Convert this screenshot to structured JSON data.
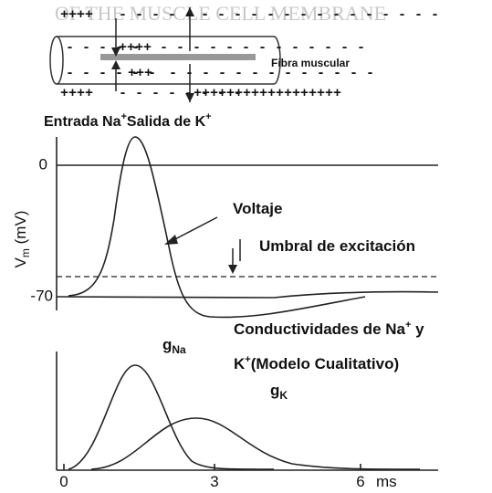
{
  "background_heading": "OF THE MUSCLE CELL MEMBRANE",
  "fiber": {
    "label": "Fibra muscular",
    "charges": {
      "outer_top_left": "++++",
      "outer_top_right": "- - - - - - - - - - - - - - - - - - - -",
      "inner_top_left": "- - - - -",
      "inner_top_mid": "++++",
      "inner_top_right": "- - - - - - - - - - - - -",
      "inner_bottom_left": "- - - - - -",
      "inner_bottom_mid": "+++",
      "inner_bottom_right": "- - - - - - - - - - - - -",
      "outer_bottom_left": "++++",
      "outer_bottom_mid": "- - - - - - - -",
      "outer_bottom_right": "++++++++++++++++++"
    }
  },
  "flux_label": [
    "Entrada Na",
    "+",
    "Salida de K",
    "+"
  ],
  "voltage": {
    "axis_label": "V",
    "axis_sub": "m",
    "axis_unit": " (mV)",
    "tick_top": "0",
    "tick_bottom": "-70",
    "curve_label": "Voltaje",
    "threshold_label": "Umbral de excitación"
  },
  "conductance": {
    "title_line1": [
      "Conductividades de Na",
      "+",
      " y"
    ],
    "title_line2": [
      "K",
      "+",
      "(Modelo Cualitativo)"
    ],
    "g_na": [
      "g",
      "Na"
    ],
    "g_k": [
      "g",
      "K"
    ],
    "x_ticks": [
      "0",
      "3",
      "6"
    ],
    "x_unit": "ms"
  }
}
